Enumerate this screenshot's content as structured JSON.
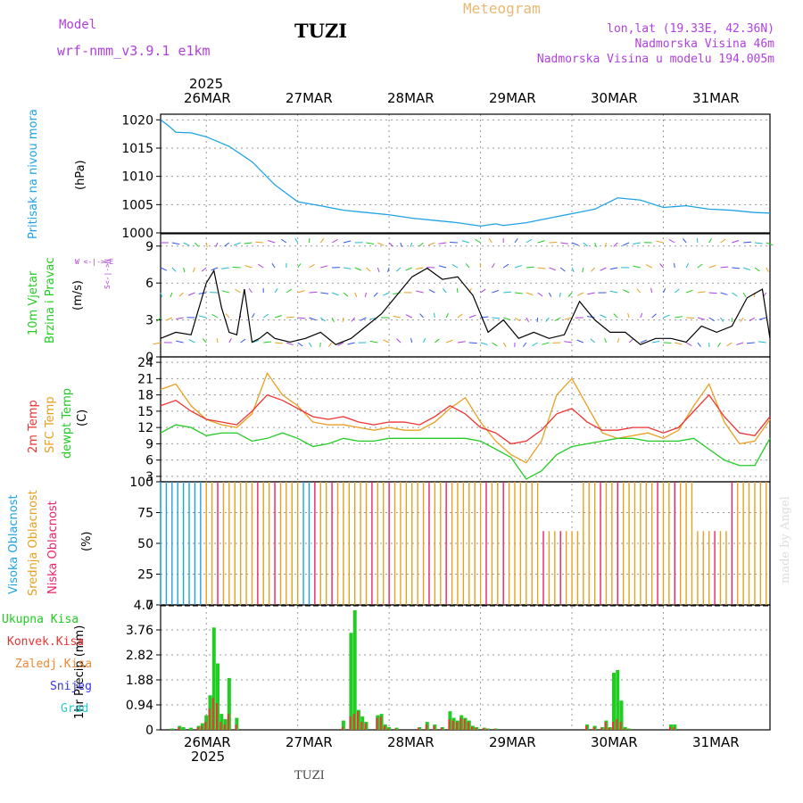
{
  "header": {
    "model_label": "Model",
    "model_name": "wrf-nmm_v3.9.1  e1km",
    "station": "TUZI",
    "product": "Meteogram",
    "coords": "lon,lat (19.33E, 42.36N)",
    "elevation": "Nadmorska Visina 46m",
    "model_elevation": "Nadmorska Visina u modelu 194.005m"
  },
  "footer": {
    "station": "TUZI",
    "watermark": "made by Angel"
  },
  "colors": {
    "pressure": "#1fa3e6",
    "wind_label": "#22cc22",
    "wind_dir": "#b040e0",
    "temp2m": "#ee3333",
    "sfc": "#e8a020",
    "dewpt": "#22cc22",
    "cloud_high": "#1fa3e6",
    "cloud_mid": "#e8a020",
    "cloud_low": "#ee2266",
    "precip_total": "#22cc22",
    "precip_conv": "#ee3333",
    "precip_frozen": "#ee8833",
    "snow": "#3333ee",
    "hail": "#22cccc"
  },
  "labels": {
    "year": "2025",
    "dates": [
      "26MAR",
      "27MAR",
      "28MAR",
      "29MAR",
      "30MAR",
      "31MAR"
    ],
    "pressure_title": "Pritisak na nivou mora",
    "pressure_unit": "(hPa)",
    "wind_title1": "10m Vjetar",
    "wind_title2": "Brzina i Pravac",
    "wind_unit": "(m/s)",
    "wind_dir_legend": "W  <-|-> E",
    "wind_dir_legend2": "S<-|->N",
    "temp_title1": "2m Temp",
    "temp_title2": "SFC Temp",
    "temp_title3": "dewpt Temp",
    "temp_unit": "(C)",
    "cloud_title1": "Visoka Oblacnost",
    "cloud_title2": "Srednja Oblacnost",
    "cloud_title3": "Niska Oblacnost",
    "cloud_unit": "(%)",
    "precip_unit": "1hr Precip (mm)",
    "precip_legend": [
      "Ukupna Kisa",
      "Konvek.Kisa",
      "Zaledj.Kisa",
      "Snijeg",
      "Grad"
    ]
  },
  "chart_data": [
    {
      "type": "line",
      "name": "pressure",
      "ylabel": "(hPa)",
      "ylim": [
        1000,
        1021
      ],
      "yticks": [
        1000,
        1005,
        1010,
        1015,
        1020
      ],
      "x_hours": [
        0,
        2,
        4,
        8,
        12,
        18,
        24,
        30,
        36,
        42,
        48,
        54,
        60,
        66,
        72,
        78,
        84,
        88,
        90,
        96,
        102,
        108,
        114,
        120,
        126,
        132,
        138,
        144,
        150,
        156,
        160
      ],
      "values": [
        1020,
        1019,
        1017.8,
        1017.7,
        1017,
        1015.3,
        1012.6,
        1008.5,
        1005.5,
        1004.8,
        1004,
        1003.6,
        1003.2,
        1002.6,
        1002.2,
        1001.8,
        1001.2,
        1001.6,
        1001.3,
        1001.8,
        1002.6,
        1003.4,
        1004.2,
        1006.2,
        1005.8,
        1004.5,
        1004.8,
        1004.2,
        1004,
        1003.6,
        1003.5
      ]
    },
    {
      "type": "line",
      "name": "wind",
      "ylabel": "(m/s)",
      "ylim": [
        0,
        10
      ],
      "yticks": [
        0,
        3,
        6,
        9
      ],
      "x_hours": [
        0,
        4,
        8,
        12,
        14,
        16,
        18,
        20,
        22,
        24,
        26,
        28,
        30,
        34,
        38,
        42,
        46,
        50,
        54,
        58,
        62,
        66,
        70,
        74,
        78,
        82,
        86,
        90,
        94,
        98,
        102,
        106,
        110,
        114,
        118,
        122,
        126,
        130,
        134,
        138,
        142,
        146,
        150,
        154,
        158,
        160
      ],
      "speed": [
        1.5,
        2,
        1.8,
        6,
        7,
        4,
        2,
        1.8,
        5.5,
        1.2,
        1.5,
        2,
        1.5,
        1.2,
        1.5,
        2,
        1,
        1.5,
        2.5,
        3.5,
        5,
        6.5,
        7.2,
        6.3,
        6.5,
        5,
        2,
        3,
        1.5,
        2,
        1.5,
        1.8,
        4.5,
        3,
        2,
        2,
        1,
        1.5,
        1.5,
        1.2,
        2.5,
        2,
        2.5,
        4.8,
        5.5,
        1.5
      ]
    },
    {
      "type": "line",
      "name": "temperature",
      "ylabel": "(C)",
      "ylim": [
        2,
        25
      ],
      "yticks": [
        3,
        6,
        9,
        12,
        15,
        18,
        21,
        24
      ],
      "x_hours": [
        0,
        4,
        8,
        12,
        16,
        20,
        24,
        28,
        32,
        36,
        40,
        44,
        48,
        52,
        56,
        60,
        64,
        68,
        72,
        76,
        80,
        84,
        88,
        92,
        96,
        100,
        104,
        108,
        112,
        116,
        120,
        124,
        128,
        132,
        136,
        140,
        144,
        148,
        152,
        156,
        160
      ],
      "series": [
        {
          "name": "2m Temp",
          "values": [
            16,
            17,
            15,
            13.5,
            13,
            12.5,
            15,
            18,
            17,
            15.5,
            14,
            13.5,
            14,
            13,
            12.5,
            13,
            13,
            12.5,
            14,
            16,
            14.5,
            12,
            11,
            9,
            9.5,
            11.5,
            14.5,
            15.5,
            13,
            11.5,
            11.5,
            12,
            12,
            11,
            12,
            15,
            18,
            14,
            11,
            10.5,
            14
          ]
        },
        {
          "name": "SFC Temp",
          "values": [
            19,
            20,
            16,
            13.5,
            12.5,
            12,
            14.5,
            22,
            18,
            16,
            13,
            12.5,
            12.5,
            12,
            11.5,
            12,
            11.5,
            11.5,
            13,
            15.5,
            17.5,
            13,
            9.5,
            7,
            5.5,
            9.5,
            18,
            21,
            16,
            11,
            10,
            10.5,
            11,
            10,
            11.5,
            16,
            20,
            13,
            9,
            9.5,
            13.5
          ]
        },
        {
          "name": "dewpt Temp",
          "values": [
            11,
            12.5,
            12,
            10.5,
            11,
            11,
            9.5,
            10,
            11,
            10,
            8.5,
            9,
            10,
            9.5,
            9.5,
            10,
            10,
            10,
            10,
            10,
            10,
            9.5,
            8,
            6.5,
            2.5,
            4,
            7,
            8.5,
            9,
            9.5,
            10,
            10,
            9.5,
            9.5,
            9.5,
            10,
            8,
            6,
            5,
            5,
            10
          ]
        }
      ]
    },
    {
      "type": "bar",
      "name": "cloud_cover",
      "ylabel": "(%)",
      "ylim": [
        0,
        100
      ],
      "yticks": [
        0,
        25,
        50,
        75,
        100
      ]
    },
    {
      "type": "bar",
      "name": "precipitation",
      "ylabel": "1hr Precip (mm)",
      "ylim": [
        0,
        4.7
      ],
      "yticks": [
        0,
        0.94,
        1.88,
        2.82,
        3.76,
        4.7
      ],
      "x_hours": [
        3,
        5,
        6,
        8,
        10,
        11,
        12,
        13,
        14,
        15,
        16,
        17,
        18,
        20,
        48,
        50,
        51,
        52,
        53,
        54,
        57,
        58,
        59,
        60,
        62,
        68,
        70,
        72,
        74,
        76,
        77,
        78,
        79,
        80,
        81,
        82,
        83,
        85,
        86,
        88,
        112,
        114,
        116,
        117,
        118,
        119,
        120,
        121,
        122,
        123,
        134,
        135
      ],
      "total": [
        0.05,
        0.15,
        0.1,
        0.08,
        0.15,
        0.25,
        0.55,
        1.3,
        3.85,
        2.5,
        0.6,
        0.4,
        1.95,
        0.45,
        0.35,
        3.65,
        4.5,
        0.75,
        0.5,
        0.3,
        0.55,
        0.6,
        0.2,
        0.1,
        0.08,
        0.1,
        0.3,
        0.2,
        0.1,
        0.7,
        0.45,
        0.35,
        0.55,
        0.45,
        0.35,
        0.15,
        0.1,
        0.08,
        0.05,
        0.05,
        0.2,
        0.15,
        0.1,
        0.35,
        0.1,
        2.15,
        2.25,
        1.1,
        0.1,
        0.05,
        0.2,
        0.2
      ],
      "convective": [
        0,
        0.1,
        0,
        0,
        0.1,
        0.15,
        0.3,
        0.8,
        1.2,
        1,
        0.3,
        0.2,
        0.6,
        0.2,
        0.1,
        0.5,
        0.6,
        0.7,
        0.3,
        0.25,
        0.45,
        0.5,
        0.15,
        0.05,
        0.05,
        0.08,
        0.2,
        0.15,
        0.08,
        0.4,
        0.35,
        0.3,
        0.45,
        0.4,
        0.3,
        0.12,
        0.08,
        0.06,
        0.04,
        0.04,
        0.15,
        0.1,
        0.08,
        0.3,
        0.08,
        0.3,
        0.4,
        0.3,
        0.05,
        0.03,
        0.1,
        0.1
      ]
    }
  ]
}
